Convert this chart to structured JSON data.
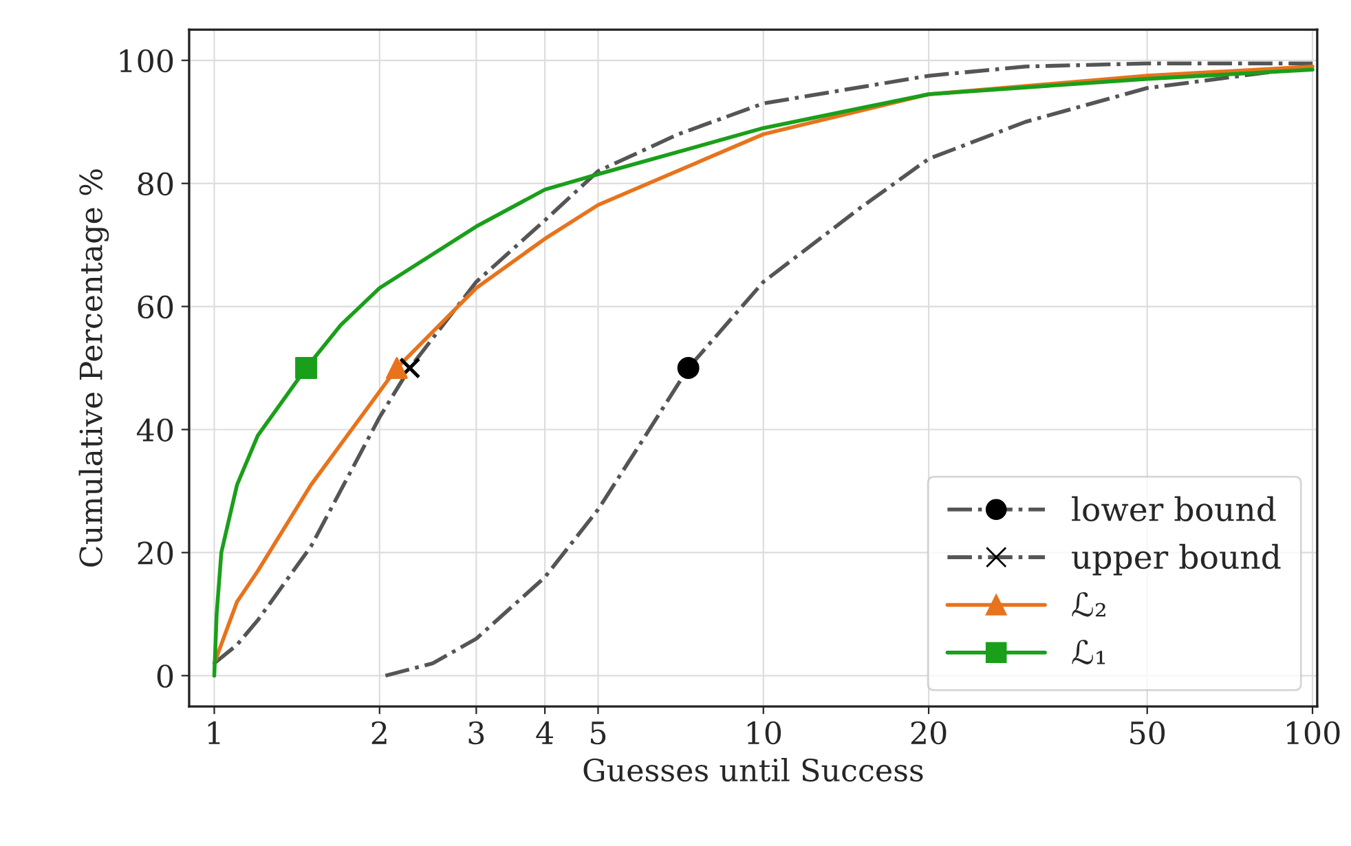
{
  "chart_data": {
    "type": "line",
    "xlabel": "Guesses until Success",
    "ylabel": "Cumulative Percentage %",
    "log": "x",
    "xlim": [
      0.9,
      102
    ],
    "ylim": [
      -5,
      105
    ],
    "xticks": [
      1,
      2,
      3,
      4,
      5,
      10,
      20,
      50,
      100
    ],
    "yticks": [
      0,
      20,
      40,
      60,
      80,
      100
    ],
    "grid": true,
    "legend": "bottom right",
    "series": [
      {
        "name": "lower bound",
        "color": "#555555",
        "line_style": "dashdot",
        "x": [
          2.05,
          2.5,
          3,
          4,
          5,
          6,
          7.3,
          10,
          15,
          20,
          30,
          50,
          100
        ],
        "values": [
          0,
          2,
          6,
          16,
          27,
          38,
          50,
          64,
          76,
          84,
          90,
          95.5,
          99
        ]
      },
      {
        "name": "upper bound",
        "color": "#555555",
        "line_style": "dashdot",
        "x": [
          1,
          1.1,
          1.2,
          1.5,
          2,
          2.27,
          3,
          4,
          5,
          7,
          10,
          20,
          30,
          50,
          100
        ],
        "values": [
          2,
          5,
          9,
          21,
          42,
          50,
          64,
          74,
          82,
          88,
          93,
          97.5,
          99,
          99.5,
          99.5
        ]
      },
      {
        "name": "ℒ₂",
        "color": "#e8731c",
        "line_style": "solid",
        "x": [
          1,
          1.1,
          1.2,
          1.5,
          2.15,
          3,
          4,
          5,
          10,
          20,
          50,
          100
        ],
        "values": [
          2,
          12,
          17,
          31,
          50,
          63,
          71,
          76.5,
          88,
          94.5,
          97.5,
          99
        ]
      },
      {
        "name": "ℒ₁",
        "color": "#1a9f1a",
        "line_style": "solid",
        "x": [
          1,
          1.01,
          1.03,
          1.1,
          1.2,
          1.47,
          1.7,
          2,
          3,
          4,
          5,
          10,
          20,
          50,
          100
        ],
        "values": [
          0,
          10,
          20,
          31,
          39,
          50,
          57,
          63,
          73,
          79,
          81.5,
          89,
          94.5,
          97,
          98.5
        ]
      },
      {
        "type": "scatter",
        "color": "#000000",
        "marker": "circle",
        "x": [
          7.3
        ],
        "values": [
          50
        ]
      },
      {
        "type": "scatter",
        "color": "#000000",
        "marker": "cross",
        "x": [
          2.27
        ],
        "values": [
          50
        ]
      },
      {
        "type": "scatter",
        "color": "#e8731c",
        "marker": "triangle",
        "x": [
          2.15
        ],
        "values": [
          50
        ]
      },
      {
        "type": "scatter",
        "color": "#1a9f1a",
        "marker": "square",
        "x": [
          1.47
        ],
        "values": [
          50
        ]
      }
    ]
  }
}
